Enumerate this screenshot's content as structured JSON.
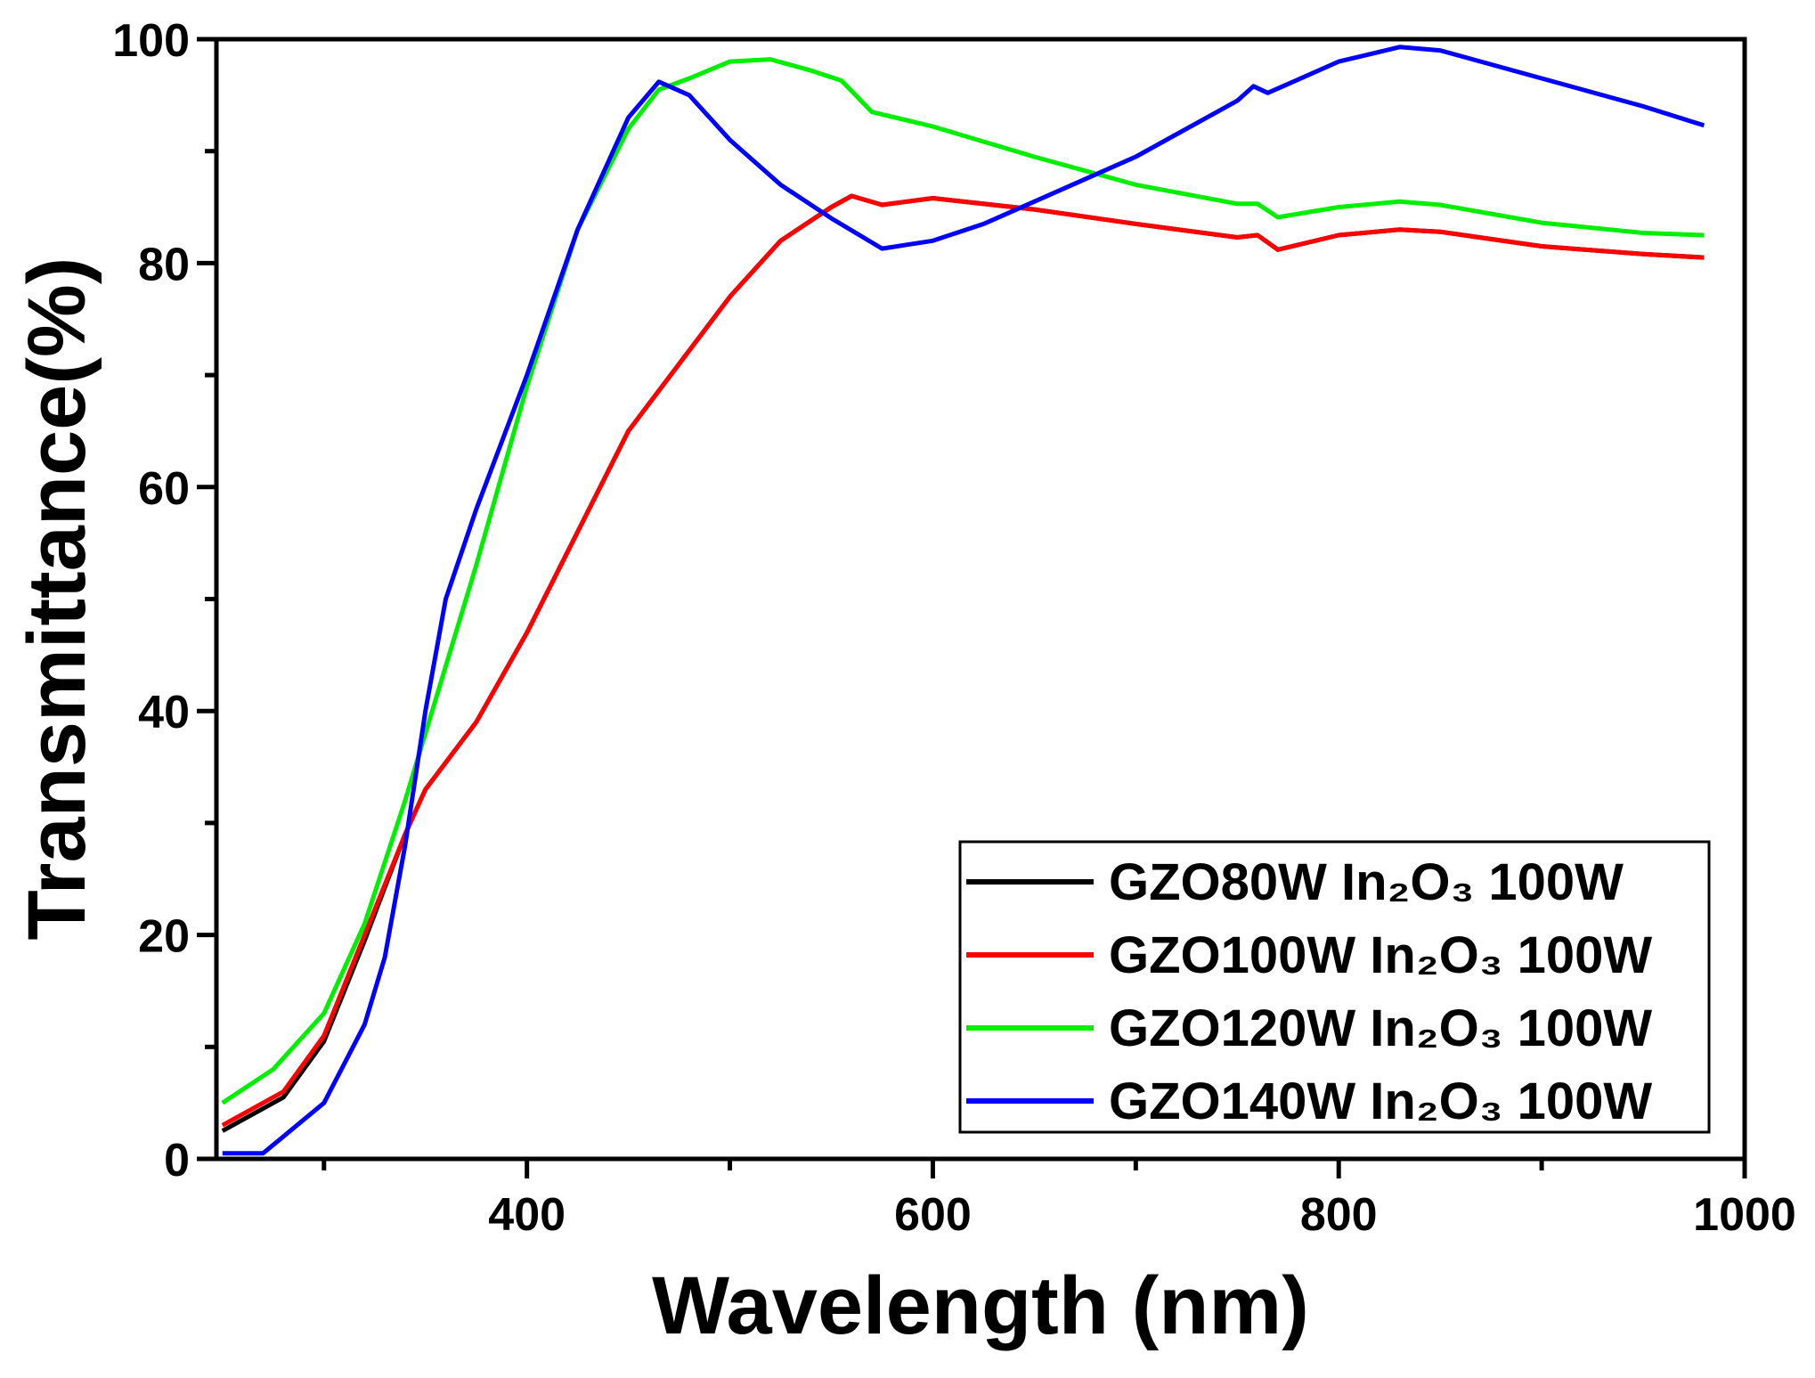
{
  "chart_data": {
    "type": "line",
    "title": "",
    "xlabel": "Wavelength (nm)",
    "ylabel": "Transmittance(%)",
    "xlim": [
      247,
      1000
    ],
    "ylim": [
      0,
      100
    ],
    "xticks": [
      400,
      600,
      800,
      1000
    ],
    "xminor": [
      300,
      500,
      700,
      900
    ],
    "yticks": [
      0,
      20,
      40,
      60,
      80,
      100
    ],
    "yminor": [
      10,
      30,
      50,
      70,
      90
    ],
    "grid": false,
    "legend_position": "bottom-right",
    "series": [
      {
        "name": "GZO80W In₂O₃ 100W",
        "color": "#000000",
        "x": [
          250,
          280,
          300,
          320,
          340,
          350,
          375,
          400,
          425,
          450,
          475,
          500,
          525,
          550,
          560,
          575,
          600,
          650,
          700,
          750,
          760,
          770,
          800,
          830,
          850,
          900,
          950,
          980
        ],
        "y": [
          2.5,
          5.5,
          10.5,
          19.5,
          29,
          33,
          39,
          47,
          56,
          65,
          71,
          77,
          82,
          85,
          86,
          85.2,
          85.8,
          84.8,
          83.5,
          82.3,
          82.5,
          81.2,
          82.5,
          83,
          82.8,
          81.5,
          80.8,
          80.5
        ]
      },
      {
        "name": "GZO100W In₂O₃ 100W",
        "color": "#ff0000",
        "x": [
          250,
          280,
          300,
          320,
          340,
          350,
          375,
          400,
          425,
          450,
          475,
          500,
          525,
          550,
          560,
          575,
          600,
          650,
          700,
          750,
          760,
          770,
          800,
          830,
          850,
          900,
          950,
          980
        ],
        "y": [
          3,
          6,
          11,
          20,
          29,
          33,
          39,
          47,
          56,
          65,
          71,
          77,
          82,
          85,
          86,
          85.2,
          85.8,
          84.8,
          83.5,
          82.3,
          82.5,
          81.2,
          82.5,
          83,
          82.8,
          81.5,
          80.8,
          80.5
        ]
      },
      {
        "name": "GZO120W In₂O₃ 100W",
        "color": "#00ee00",
        "x": [
          250,
          275,
          300,
          320,
          340,
          350,
          375,
          400,
          425,
          450,
          465,
          480,
          500,
          520,
          540,
          555,
          570,
          600,
          650,
          700,
          750,
          760,
          770,
          800,
          830,
          850,
          900,
          950,
          980
        ],
        "y": [
          5,
          8,
          13,
          21,
          32,
          38,
          53,
          69,
          83,
          92,
          95.5,
          96.5,
          98,
          98.2,
          97.2,
          96.3,
          93.5,
          92.2,
          89.5,
          87,
          85.3,
          85.3,
          84.1,
          85,
          85.5,
          85.2,
          83.6,
          82.7,
          82.5
        ]
      },
      {
        "name": "GZO140W In₂O₃ 100W",
        "color": "#0000ff",
        "x": [
          250,
          270,
          280,
          300,
          320,
          330,
          340,
          350,
          360,
          375,
          400,
          425,
          450,
          465,
          480,
          500,
          525,
          550,
          575,
          600,
          625,
          650,
          700,
          750,
          758,
          765,
          775,
          800,
          830,
          850,
          900,
          950,
          980
        ],
        "y": [
          0.5,
          0.5,
          2,
          5,
          12,
          18,
          28,
          40,
          50,
          58,
          70,
          83,
          93,
          96.2,
          95,
          91,
          87,
          84,
          81.3,
          82,
          83.5,
          85.5,
          89.5,
          94.5,
          95.8,
          95.2,
          96,
          98,
          99.3,
          99,
          96.5,
          94,
          92.3
        ]
      }
    ]
  }
}
